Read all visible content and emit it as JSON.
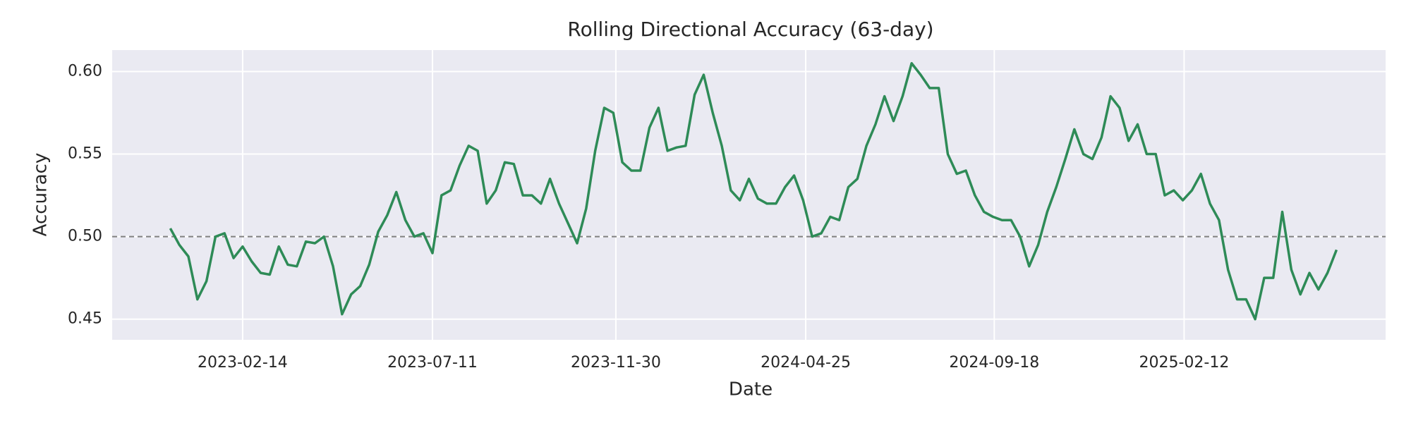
{
  "chart_data": {
    "type": "line",
    "title": "Rolling Directional Accuracy (63-day)",
    "x_label": "Date",
    "y_label": "Accuracy",
    "x": [
      "2022-12-20",
      "2022-12-27",
      "2023-01-03",
      "2023-01-10",
      "2023-01-17",
      "2023-01-24",
      "2023-01-31",
      "2023-02-07",
      "2023-02-14",
      "2023-02-21",
      "2023-02-28",
      "2023-03-07",
      "2023-03-14",
      "2023-03-21",
      "2023-03-28",
      "2023-04-04",
      "2023-04-11",
      "2023-04-18",
      "2023-04-25",
      "2023-05-02",
      "2023-05-09",
      "2023-05-16",
      "2023-05-23",
      "2023-05-30",
      "2023-06-06",
      "2023-06-13",
      "2023-06-20",
      "2023-06-27",
      "2023-07-04",
      "2023-07-11",
      "2023-07-18",
      "2023-07-25",
      "2023-08-01",
      "2023-08-08",
      "2023-08-15",
      "2023-08-22",
      "2023-08-29",
      "2023-09-05",
      "2023-09-12",
      "2023-09-19",
      "2023-09-26",
      "2023-10-03",
      "2023-10-10",
      "2023-10-17",
      "2023-10-24",
      "2023-10-31",
      "2023-11-07",
      "2023-11-14",
      "2023-11-21",
      "2023-11-28",
      "2023-12-05",
      "2023-12-12",
      "2023-12-19",
      "2023-12-26",
      "2024-01-02",
      "2024-01-09",
      "2024-01-16",
      "2024-01-23",
      "2024-01-30",
      "2024-02-06",
      "2024-02-13",
      "2024-02-20",
      "2024-02-27",
      "2024-03-05",
      "2024-03-12",
      "2024-03-19",
      "2024-03-26",
      "2024-04-02",
      "2024-04-09",
      "2024-04-16",
      "2024-04-23",
      "2024-04-30",
      "2024-05-07",
      "2024-05-14",
      "2024-05-21",
      "2024-05-28",
      "2024-06-04",
      "2024-06-11",
      "2024-06-18",
      "2024-06-25",
      "2024-07-02",
      "2024-07-09",
      "2024-07-16",
      "2024-07-23",
      "2024-07-30",
      "2024-08-06",
      "2024-08-13",
      "2024-08-20",
      "2024-08-27",
      "2024-09-03",
      "2024-09-10",
      "2024-09-17",
      "2024-09-24",
      "2024-10-01",
      "2024-10-08",
      "2024-10-15",
      "2024-10-22",
      "2024-10-29",
      "2024-11-05",
      "2024-11-12",
      "2024-11-19",
      "2024-11-26",
      "2024-12-03",
      "2024-12-10",
      "2024-12-17",
      "2024-12-24",
      "2024-12-31",
      "2025-01-07",
      "2025-01-14",
      "2025-01-21",
      "2025-01-28",
      "2025-02-04",
      "2025-02-11",
      "2025-02-18",
      "2025-02-25",
      "2025-03-04",
      "2025-03-11",
      "2025-03-18",
      "2025-03-25",
      "2025-04-01",
      "2025-04-08",
      "2025-04-15",
      "2025-04-22",
      "2025-04-29",
      "2025-05-06",
      "2025-05-13",
      "2025-05-20",
      "2025-05-27",
      "2025-06-03",
      "2025-06-10"
    ],
    "series": [
      {
        "color": "#2e8b57",
        "values": [
          0.505,
          0.495,
          0.488,
          0.462,
          0.473,
          0.5,
          0.502,
          0.487,
          0.494,
          0.485,
          0.478,
          0.477,
          0.494,
          0.483,
          0.482,
          0.497,
          0.496,
          0.5,
          0.482,
          0.453,
          0.465,
          0.47,
          0.483,
          0.503,
          0.513,
          0.527,
          0.51,
          0.5,
          0.502,
          0.49,
          0.525,
          0.528,
          0.543,
          0.555,
          0.552,
          0.52,
          0.528,
          0.545,
          0.544,
          0.525,
          0.525,
          0.52,
          0.535,
          0.52,
          0.508,
          0.496,
          0.517,
          0.552,
          0.578,
          0.575,
          0.545,
          0.54,
          0.54,
          0.566,
          0.578,
          0.552,
          0.554,
          0.555,
          0.586,
          0.598,
          0.575,
          0.555,
          0.528,
          0.522,
          0.535,
          0.523,
          0.52,
          0.52,
          0.53,
          0.537,
          0.522,
          0.5,
          0.502,
          0.512,
          0.51,
          0.53,
          0.535,
          0.555,
          0.568,
          0.585,
          0.57,
          0.585,
          0.605,
          0.598,
          0.59,
          0.59,
          0.55,
          0.538,
          0.54,
          0.525,
          0.515,
          0.512,
          0.51,
          0.51,
          0.5,
          0.482,
          0.495,
          0.515,
          0.53,
          0.547,
          0.565,
          0.55,
          0.547,
          0.56,
          0.585,
          0.578,
          0.558,
          0.568,
          0.55,
          0.55,
          0.525,
          0.528,
          0.522,
          0.528,
          0.538,
          0.52,
          0.51,
          0.48,
          0.462,
          0.462,
          0.45,
          0.475,
          0.475,
          0.515,
          0.48,
          0.465,
          0.478,
          0.468,
          0.478,
          0.492
        ]
      }
    ],
    "reference_line": 0.5,
    "xlim": [
      "2022-11-05",
      "2025-07-18"
    ],
    "xticks": [
      "2023-02-14",
      "2023-07-11",
      "2023-11-30",
      "2024-04-25",
      "2024-09-18",
      "2025-02-12"
    ],
    "ylim": [
      0.4375,
      0.613
    ],
    "yticks": [
      0.45,
      {
        "value": 0.5,
        "label": "0.50"
      },
      0.55,
      {
        "value": 0.6,
        "label": "0.60"
      }
    ],
    "grid": true
  }
}
